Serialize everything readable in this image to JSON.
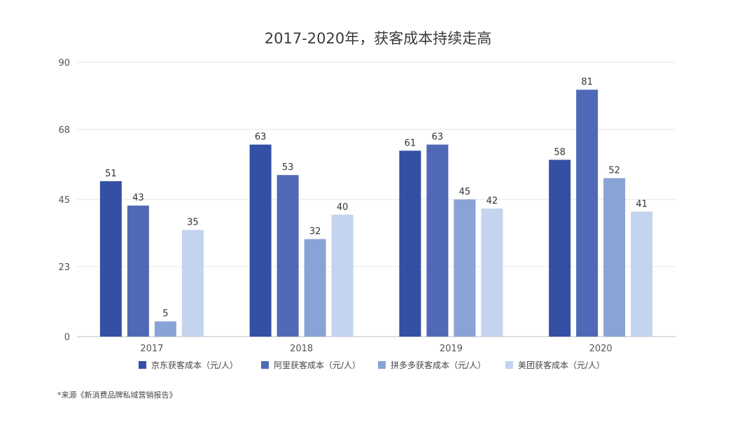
{
  "chart_data": {
    "type": "bar",
    "title": "2017-2020年，获客成本持续走高",
    "categories": [
      "2017",
      "2018",
      "2019",
      "2020"
    ],
    "series": [
      {
        "name": "京东获客成本（元/人）",
        "values": [
          51,
          63,
          61,
          58
        ],
        "color": "#3350a5"
      },
      {
        "name": "阿里获客成本（元/人）",
        "values": [
          43,
          53,
          63,
          81
        ],
        "color": "#4f69b6"
      },
      {
        "name": "拼多多获客成本（元/人）",
        "values": [
          5,
          32,
          45,
          52
        ],
        "color": "#8aa3d6"
      },
      {
        "name": "美团获客成本（元/人）",
        "values": [
          35,
          40,
          42,
          41
        ],
        "color": "#c4d3ee"
      }
    ],
    "yticks": [
      "0",
      "23",
      "45",
      "68",
      "90"
    ],
    "ylim": [
      0,
      90
    ],
    "xlabel": "",
    "ylabel": "",
    "grid": true,
    "legend_position": "bottom"
  },
  "source_note": "*来源《新消费品牌私域营销报告》"
}
